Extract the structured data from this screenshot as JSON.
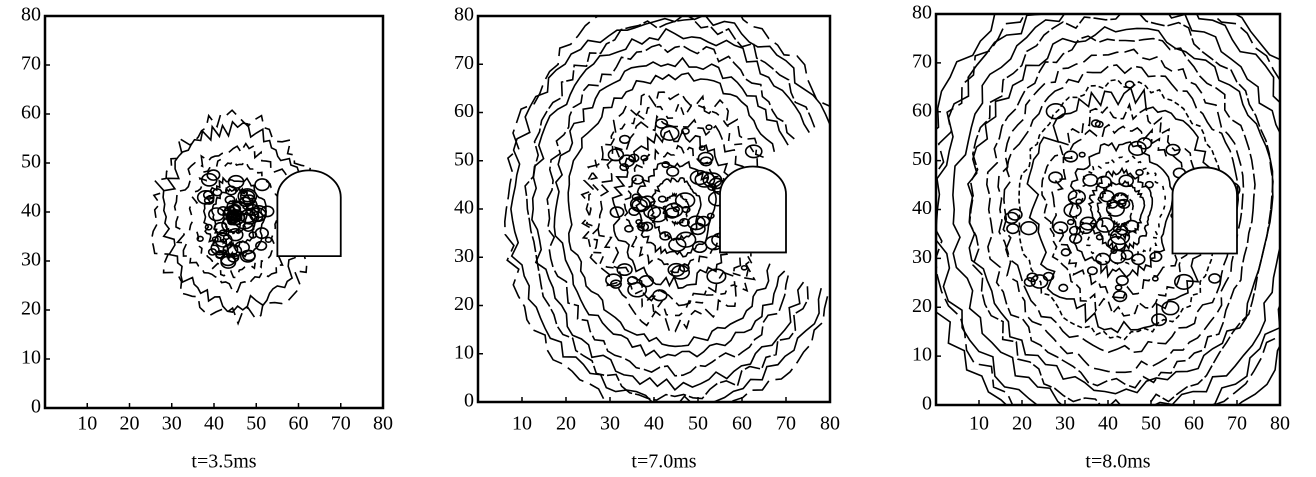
{
  "chart_data": [
    {
      "type": "contour",
      "caption": "t=3.5ms",
      "xlim": [
        0,
        80
      ],
      "ylim": [
        0,
        80
      ],
      "xticks": [
        10,
        20,
        30,
        40,
        50,
        60,
        70,
        80
      ],
      "yticks": [
        0,
        10,
        20,
        30,
        40,
        50,
        60,
        70,
        80
      ]
    },
    {
      "type": "contour",
      "caption": "t=7.0ms",
      "xlim": [
        0,
        80
      ],
      "ylim": [
        0,
        80
      ],
      "xticks": [
        10,
        20,
        30,
        40,
        50,
        60,
        70,
        80
      ],
      "yticks": [
        0,
        10,
        20,
        30,
        40,
        50,
        60,
        70,
        80
      ]
    },
    {
      "type": "contour",
      "caption": "t=8.0ms",
      "xlim": [
        0,
        80
      ],
      "ylim": [
        0,
        80
      ],
      "xticks": [
        10,
        20,
        30,
        40,
        50,
        60,
        70,
        80
      ],
      "yticks": [
        0,
        10,
        20,
        30,
        40,
        50,
        60,
        70,
        80
      ]
    }
  ]
}
